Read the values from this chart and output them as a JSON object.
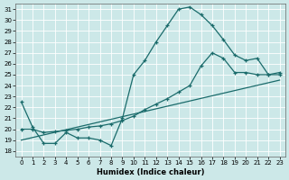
{
  "xlabel": "Humidex (Indice chaleur)",
  "bg_color": "#cce8e8",
  "grid_color": "#ffffff",
  "line_color": "#1a6b6b",
  "xlim": [
    -0.5,
    23.5
  ],
  "ylim": [
    17.5,
    31.5
  ],
  "yticks": [
    18,
    19,
    20,
    21,
    22,
    23,
    24,
    25,
    26,
    27,
    28,
    29,
    30,
    31
  ],
  "xticks": [
    0,
    1,
    2,
    3,
    4,
    5,
    6,
    7,
    8,
    9,
    10,
    11,
    12,
    13,
    14,
    15,
    16,
    17,
    18,
    19,
    20,
    21,
    22,
    23
  ],
  "line1_x": [
    0,
    1,
    2,
    3,
    4,
    5,
    6,
    7,
    8,
    9,
    10,
    11,
    12,
    13,
    14,
    15,
    16,
    17,
    18,
    19,
    20,
    21,
    22,
    23
  ],
  "line1_y": [
    22.5,
    20.2,
    18.7,
    18.7,
    19.7,
    19.2,
    19.2,
    19.0,
    18.5,
    21.0,
    25.0,
    26.3,
    28.0,
    29.5,
    31.0,
    31.2,
    30.5,
    29.5,
    28.2,
    26.8,
    26.3,
    26.5,
    25.0,
    25.2
  ],
  "line2_x": [
    0,
    1,
    2,
    3,
    4,
    5,
    6,
    7,
    8,
    9,
    10,
    11,
    12,
    13,
    14,
    15,
    16,
    17,
    18,
    19,
    20,
    21,
    22,
    23
  ],
  "line2_y": [
    20.0,
    20.0,
    19.7,
    19.8,
    19.9,
    20.0,
    20.2,
    20.3,
    20.5,
    20.8,
    21.2,
    21.8,
    22.3,
    22.8,
    23.4,
    24.0,
    25.8,
    27.0,
    26.5,
    25.2,
    25.2,
    25.0,
    25.0,
    25.0
  ],
  "line3_x": [
    0,
    23
  ],
  "line3_y": [
    19.0,
    24.5
  ]
}
